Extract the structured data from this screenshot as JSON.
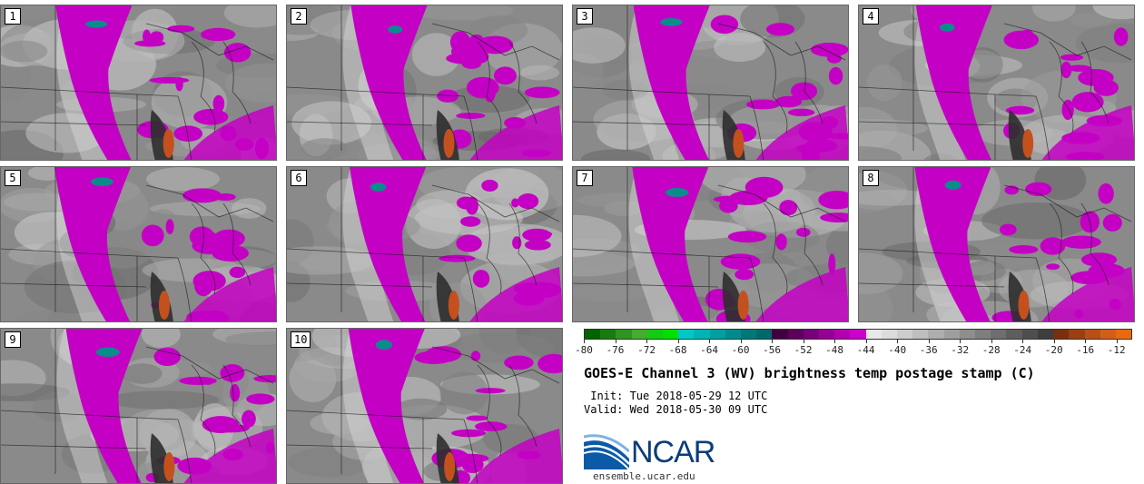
{
  "panels": [
    {
      "number": "1"
    },
    {
      "number": "2"
    },
    {
      "number": "3"
    },
    {
      "number": "4"
    },
    {
      "number": "5"
    },
    {
      "number": "6"
    },
    {
      "number": "7"
    },
    {
      "number": "8"
    },
    {
      "number": "9"
    },
    {
      "number": "10"
    }
  ],
  "colorbar": {
    "tick_labels": [
      "-80",
      "-76",
      "-72",
      "-68",
      "-64",
      "-60",
      "-56",
      "-52",
      "-48",
      "-44",
      "-40",
      "-36",
      "-32",
      "-28",
      "-24",
      "-20",
      "-16",
      "-12"
    ],
    "min": -80,
    "max": -10,
    "step": 2,
    "colors": [
      "#006400",
      "#1a7a10",
      "#2f9420",
      "#44ad30",
      "#12cc12",
      "#00e000",
      "#00c8c8",
      "#00b4b4",
      "#00a0a0",
      "#008c8c",
      "#007878",
      "#006868",
      "#400040",
      "#5c005c",
      "#780078",
      "#940094",
      "#b000b0",
      "#cc00cc",
      "#e8e8e8",
      "#dcdcdc",
      "#cdcdcd",
      "#bebebe",
      "#aeaeae",
      "#9e9e9e",
      "#8e8e8e",
      "#7e7e7e",
      "#6e6e6e",
      "#5e5e5e",
      "#4e4e4e",
      "#3e3e3e",
      "#7a2e10",
      "#9a3f14",
      "#b84f18",
      "#d05f1a",
      "#e86a10"
    ]
  },
  "title": "GOES-E Channel 3 (WV) brightness temp postage stamp (C)",
  "init_line": " Init: Tue 2018-05-29 12 UTC",
  "valid_line": "Valid: Wed 2018-05-30 09 UTC",
  "logo": {
    "text": "NCAR",
    "url": "ensemble.ucar.edu",
    "brand_color": "#0a3d7a"
  },
  "map_colors": {
    "background": "#8a8a8a",
    "moisture": "#c400c4",
    "cold_core": "#0b8c8c",
    "warm_core": "#c4501e",
    "border_lines": "#1a1a1a"
  }
}
